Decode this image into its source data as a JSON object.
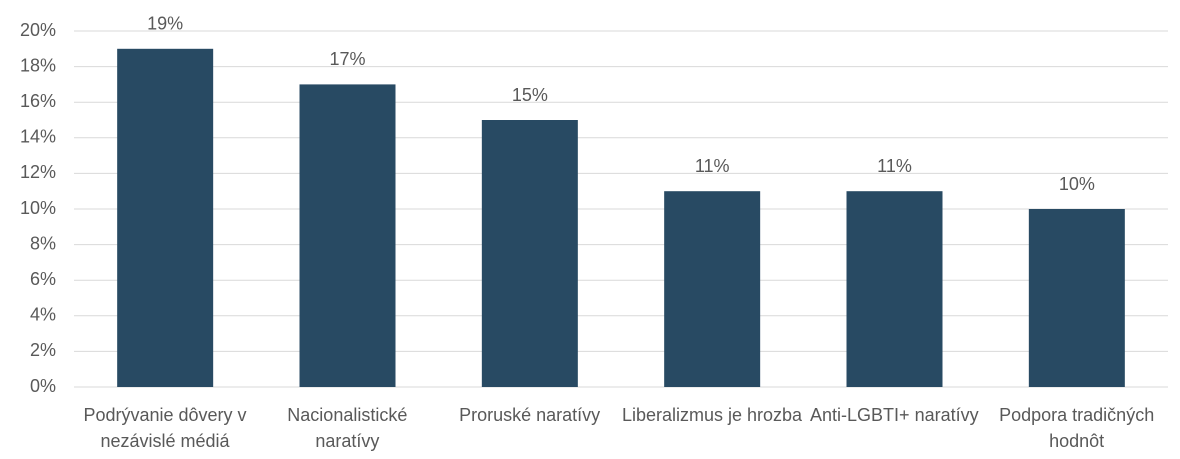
{
  "chart_data": {
    "type": "bar",
    "categories": [
      "Podrývanie dôvery v nezávislé médiá",
      "Nacionalistické naratívy",
      "Proruské naratívy",
      "Liberalizmus je hrozba",
      "Anti-LGBTI+ naratívy",
      "Podpora tradičných hodnôt"
    ],
    "values": [
      19,
      17,
      15,
      11,
      11,
      10
    ],
    "value_labels": [
      "19%",
      "17%",
      "15%",
      "11%",
      "11%",
      "10%"
    ],
    "color": "#284a63",
    "ylim": [
      0,
      20
    ],
    "yticks": [
      {
        "value": 0,
        "label": "0%"
      },
      {
        "value": 2,
        "label": "2%"
      },
      {
        "value": 4,
        "label": "4%"
      },
      {
        "value": 6,
        "label": "6%"
      },
      {
        "value": 8,
        "label": "8%"
      },
      {
        "value": 10,
        "label": "10%"
      },
      {
        "value": 12,
        "label": "12%"
      },
      {
        "value": 14,
        "label": "14%"
      },
      {
        "value": 16,
        "label": "16%"
      },
      {
        "value": 18,
        "label": "18%"
      },
      {
        "value": 20,
        "label": "20%"
      }
    ],
    "grid": true
  }
}
